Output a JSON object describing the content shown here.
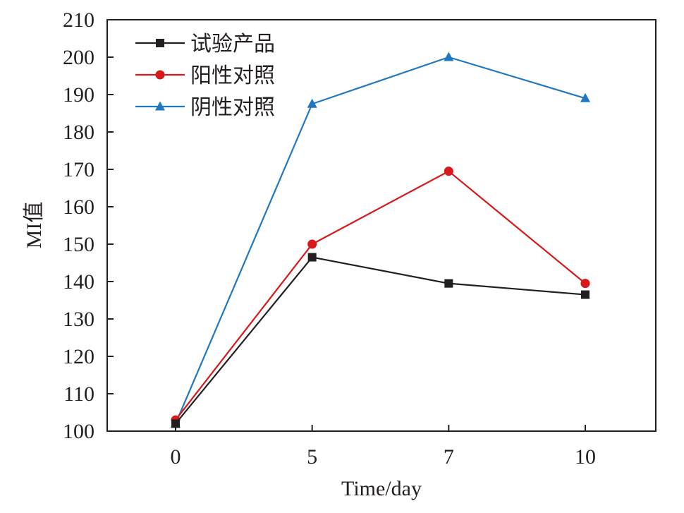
{
  "chart_data": {
    "type": "line",
    "x_categories": [
      "0",
      "5",
      "7",
      "10"
    ],
    "xlabel": "Time/day",
    "ylabel": "MI值",
    "ylim": [
      100,
      210
    ],
    "yticks": [
      100,
      110,
      120,
      130,
      140,
      150,
      160,
      170,
      180,
      190,
      200,
      210
    ],
    "grid": false,
    "legend_position": "top-left",
    "series": [
      {
        "name": "试验产品",
        "values": [
          102,
          146.5,
          139.5,
          136.5
        ],
        "color": "#231f20",
        "marker": "square"
      },
      {
        "name": "阳性对照",
        "values": [
          103,
          150,
          169.5,
          139.5
        ],
        "color": "#d7191c",
        "marker": "circle"
      },
      {
        "name": "阴性对照",
        "values": [
          102,
          187.5,
          200,
          189
        ],
        "color": "#1f78c1",
        "marker": "triangle"
      }
    ]
  }
}
